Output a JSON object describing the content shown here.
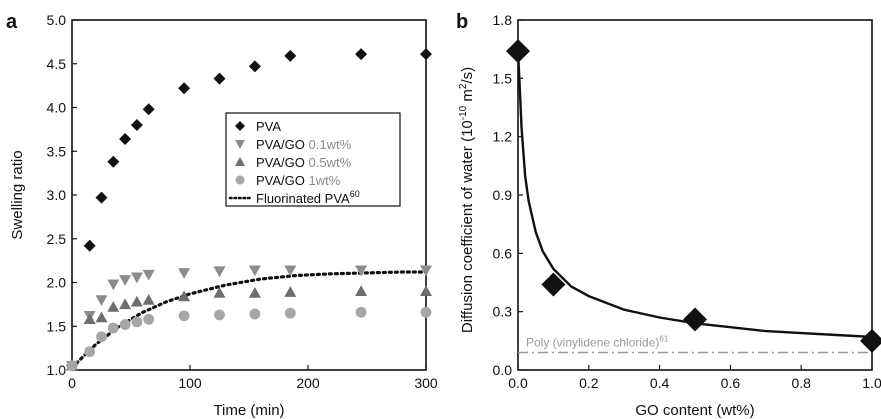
{
  "chart_data": [
    {
      "panel_label": "a",
      "type": "scatter",
      "xlabel": "Time (min)",
      "ylabel": "Swelling ratio",
      "xlim": [
        0,
        300
      ],
      "ylim": [
        1.0,
        5.0
      ],
      "xticks": [
        "0",
        "100",
        "200",
        "300"
      ],
      "yticks": [
        "1.0",
        "1.5",
        "2.0",
        "2.5",
        "3.0",
        "3.5",
        "4.0",
        "4.5",
        "5.0"
      ],
      "grid": false,
      "legend_position": "center-right",
      "series": [
        {
          "name": "PVA",
          "marker": "diamond",
          "color": "#111111",
          "x": [
            0,
            15,
            25,
            35,
            45,
            55,
            65,
            95,
            125,
            155,
            185,
            245,
            300
          ],
          "y": [
            1.05,
            2.42,
            2.97,
            3.38,
            3.64,
            3.8,
            3.98,
            4.22,
            4.33,
            4.47,
            4.59,
            4.61,
            4.61
          ]
        },
        {
          "name": "PVA/GO",
          "name_suffix": "0.1wt%",
          "marker": "triangle-down",
          "color": "#8c8c8c",
          "x": [
            0,
            15,
            25,
            35,
            45,
            55,
            65,
            95,
            125,
            155,
            185,
            245,
            300
          ],
          "y": [
            1.05,
            1.62,
            1.8,
            1.98,
            2.03,
            2.06,
            2.09,
            2.11,
            2.13,
            2.14,
            2.14,
            2.14,
            2.14
          ]
        },
        {
          "name": "PVA/GO",
          "name_suffix": "0.5wt%",
          "marker": "triangle-up",
          "color": "#6e6e6e",
          "x": [
            0,
            15,
            25,
            35,
            45,
            55,
            65,
            95,
            125,
            155,
            185,
            245,
            300
          ],
          "y": [
            1.05,
            1.58,
            1.6,
            1.72,
            1.75,
            1.78,
            1.8,
            1.84,
            1.88,
            1.88,
            1.89,
            1.9,
            1.9
          ]
        },
        {
          "name": "PVA/GO",
          "name_suffix": "1wt%",
          "marker": "circle",
          "color": "#a6a6a6",
          "x": [
            0,
            15,
            25,
            35,
            45,
            55,
            65,
            95,
            125,
            155,
            185,
            245,
            300
          ],
          "y": [
            1.05,
            1.21,
            1.38,
            1.48,
            1.52,
            1.55,
            1.58,
            1.62,
            1.63,
            1.64,
            1.65,
            1.66,
            1.66
          ]
        },
        {
          "name": "Fluorinated PVA",
          "name_sup": "60",
          "style": "dotted-line",
          "color": "#111111",
          "x": [
            0,
            20,
            40,
            60,
            80,
            100,
            130,
            160,
            190,
            220,
            250,
            280,
            300
          ],
          "y": [
            1.03,
            1.29,
            1.5,
            1.66,
            1.78,
            1.87,
            1.97,
            2.04,
            2.08,
            2.1,
            2.11,
            2.12,
            2.12
          ]
        }
      ]
    },
    {
      "panel_label": "b",
      "type": "scatter",
      "xlabel": "GO content (wt%)",
      "ylabel": "Diffusion coefficient of water",
      "ylabel_unit_base": "(10",
      "ylabel_unit_exp1": "-10",
      "ylabel_unit_mid": " m",
      "ylabel_unit_exp2": "2",
      "ylabel_unit_end": "/s)",
      "xlim": [
        0,
        1.0
      ],
      "ylim": [
        0.0,
        1.8
      ],
      "xticks": [
        "0.0",
        "0.2",
        "0.4",
        "0.6",
        "0.8",
        "1.0"
      ],
      "yticks": [
        "0.0",
        "0.3",
        "0.6",
        "0.9",
        "1.2",
        "1.5",
        "1.8"
      ],
      "grid": false,
      "series": [
        {
          "name": "",
          "marker": "diamond",
          "color": "#111111",
          "x": [
            0.0,
            0.1,
            0.5,
            1.0
          ],
          "y": [
            1.64,
            0.44,
            0.26,
            0.15
          ]
        },
        {
          "name": "",
          "style": "solid-fit",
          "color": "#111111",
          "x": [
            0.0,
            0.005,
            0.01,
            0.02,
            0.03,
            0.05,
            0.07,
            0.1,
            0.15,
            0.2,
            0.3,
            0.4,
            0.5,
            0.6,
            0.7,
            0.8,
            0.9,
            1.0
          ],
          "y": [
            1.64,
            1.45,
            1.25,
            1.0,
            0.87,
            0.71,
            0.61,
            0.52,
            0.43,
            0.38,
            0.31,
            0.27,
            0.24,
            0.22,
            0.2,
            0.19,
            0.18,
            0.17
          ]
        }
      ],
      "reference_line": {
        "label": "Poly (vinylidene chloride)",
        "label_sup": "61",
        "y": 0.09,
        "style": "dash-dot",
        "color": "#9a9a9a"
      }
    }
  ]
}
